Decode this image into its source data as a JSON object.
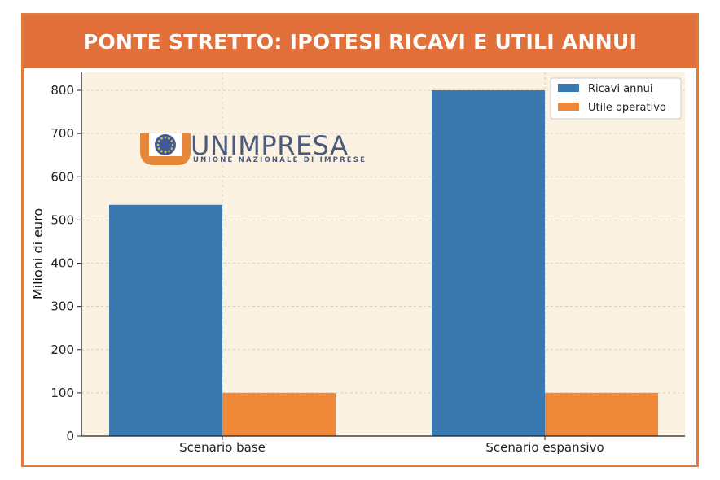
{
  "header": {
    "title": "PONTE STRETTO: IPOTESI RICAVI E UTILI ANNUI"
  },
  "logo": {
    "name": "UNIMPRESA",
    "tagline": "UNIONE NAZIONALE DI IMPRESE",
    "colors": {
      "orange": "#e6873a",
      "blue": "#4b5a7d",
      "stars": "#f2c230"
    }
  },
  "chart_data": {
    "type": "bar",
    "title": "",
    "xlabel": "",
    "ylabel": "Milioni di euro",
    "categories": [
      "Scenario base",
      "Scenario espansivo"
    ],
    "series": [
      {
        "name": "Ricavi annui",
        "values": [
          535,
          800
        ],
        "color": "#3a78b0"
      },
      {
        "name": "Utile operativo",
        "values": [
          100,
          100
        ],
        "color": "#f0883a"
      }
    ],
    "ylim": [
      0,
      840
    ],
    "yticks": [
      0,
      100,
      200,
      300,
      400,
      500,
      600,
      700,
      800
    ],
    "grid": true,
    "legend": "top-right",
    "plot_background": "#fbf2e2"
  }
}
